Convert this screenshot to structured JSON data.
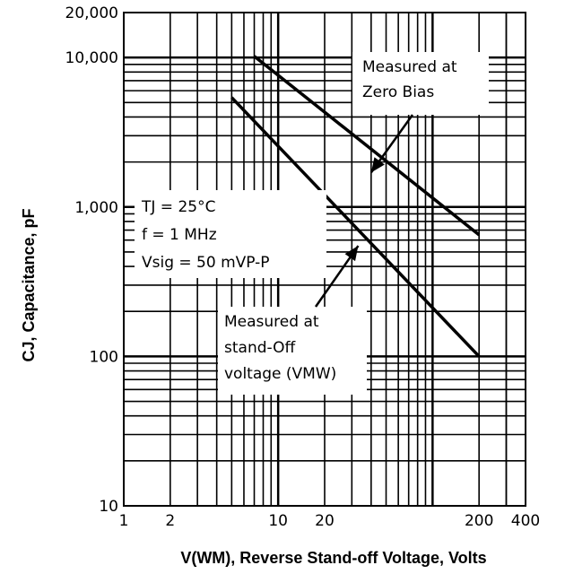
{
  "chart_data": {
    "type": "line",
    "title": "",
    "xlabel": "V(WM), Reverse Stand-off Voltage, Volts",
    "ylabel": "CJ, Capacitance, pF",
    "x_scale": "log",
    "y_scale": "log",
    "xlim": [
      1,
      400
    ],
    "ylim": [
      10,
      20000
    ],
    "x_ticks": [
      {
        "value": 1,
        "label": "1"
      },
      {
        "value": 2,
        "label": "2"
      },
      {
        "value": 10,
        "label": "10"
      },
      {
        "value": 20,
        "label": "20"
      },
      {
        "value": 200,
        "label": "200"
      },
      {
        "value": 400,
        "label": "400"
      }
    ],
    "y_ticks": [
      {
        "value": 10,
        "label": "10"
      },
      {
        "value": 100,
        "label": "100"
      },
      {
        "value": 1000,
        "label": "1,000"
      },
      {
        "value": 10000,
        "label": "10,000"
      },
      {
        "value": 20000,
        "label": "20,000"
      }
    ],
    "grid": true,
    "series": [
      {
        "x": [
          7,
          200
        ],
        "y": [
          10200,
          650
        ],
        "color": "#000000"
      },
      {
        "x": [
          5,
          200
        ],
        "y": [
          5400,
          100
        ],
        "color": "#000000"
      }
    ],
    "annotations": [
      {
        "lines": [
          "Measured at",
          "Zero Bias"
        ],
        "target_x": 40,
        "target_y": 1700
      },
      {
        "lines": [
          "Measured at",
          "stand-Off",
          "voltage (VMW)"
        ],
        "target_x": 33,
        "target_y": 550
      },
      {
        "lines": [
          "TJ = 25°C",
          "f = 1 MHz",
          "Vsig = 50 mVP-P"
        ]
      }
    ]
  }
}
